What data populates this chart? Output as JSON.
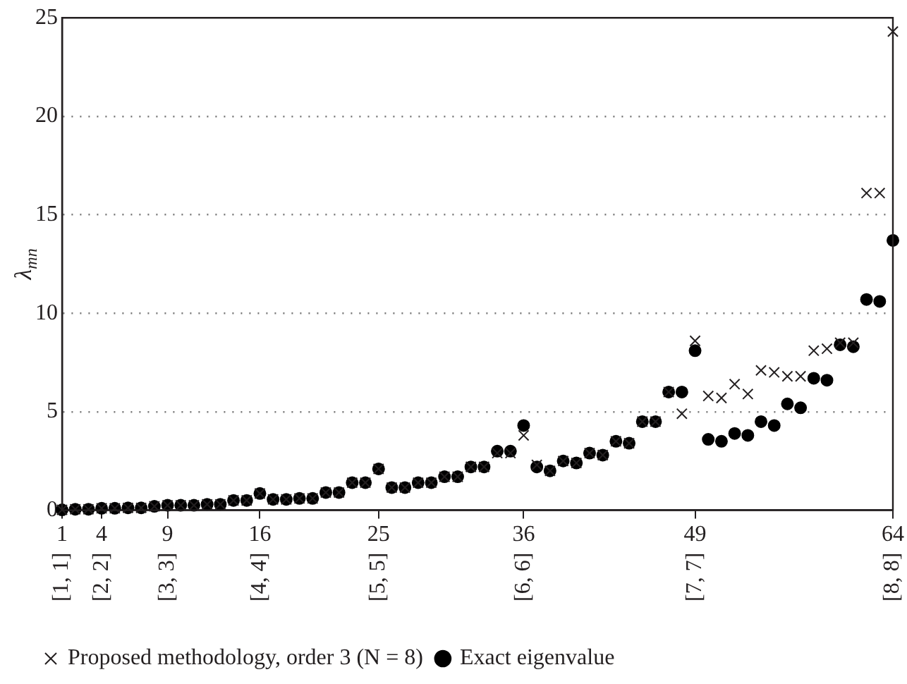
{
  "chart_data": {
    "type": "scatter",
    "ylabel": "λ$_{mn}$",
    "x": [
      1,
      2,
      3,
      4,
      5,
      6,
      7,
      8,
      9,
      10,
      11,
      12,
      13,
      14,
      15,
      16,
      17,
      18,
      19,
      20,
      21,
      22,
      23,
      24,
      25,
      26,
      27,
      28,
      29,
      30,
      31,
      32,
      33,
      34,
      35,
      36,
      37,
      38,
      39,
      40,
      41,
      42,
      43,
      44,
      45,
      46,
      47,
      48,
      49,
      50,
      51,
      52,
      53,
      54,
      55,
      56,
      57,
      58,
      59,
      60,
      61,
      62,
      63,
      64
    ],
    "series": [
      {
        "name": "Proposed methodology, order 3 (N = 8)",
        "color": "#231f20",
        "marker": "cross",
        "values": [
          0.02,
          0.05,
          0.05,
          0.1,
          0.1,
          0.12,
          0.12,
          0.2,
          0.25,
          0.25,
          0.25,
          0.3,
          0.3,
          0.5,
          0.5,
          0.85,
          0.55,
          0.55,
          0.6,
          0.6,
          0.9,
          0.9,
          1.4,
          1.4,
          2.1,
          1.15,
          1.15,
          1.4,
          1.4,
          1.7,
          1.7,
          2.2,
          2.2,
          2.9,
          2.9,
          3.8,
          2.3,
          2.0,
          2.5,
          2.4,
          2.9,
          2.8,
          3.5,
          3.4,
          4.5,
          4.5,
          6.0,
          4.9,
          8.6,
          5.8,
          5.7,
          6.4,
          5.9,
          7.1,
          7.0,
          6.8,
          6.8,
          8.1,
          8.2,
          8.5,
          8.5,
          16.1,
          16.1,
          24.3
        ]
      },
      {
        "name": "Exact eigenvalue",
        "color": "#000000",
        "marker": "circle",
        "values": [
          0.02,
          0.05,
          0.05,
          0.1,
          0.1,
          0.12,
          0.12,
          0.2,
          0.25,
          0.25,
          0.25,
          0.3,
          0.3,
          0.5,
          0.5,
          0.85,
          0.55,
          0.55,
          0.6,
          0.6,
          0.9,
          0.9,
          1.4,
          1.4,
          2.1,
          1.15,
          1.15,
          1.4,
          1.4,
          1.7,
          1.7,
          2.2,
          2.2,
          3.0,
          3.0,
          4.3,
          2.2,
          2.0,
          2.5,
          2.4,
          2.9,
          2.8,
          3.5,
          3.4,
          4.5,
          4.5,
          6.0,
          6.0,
          8.1,
          3.6,
          3.5,
          3.9,
          3.8,
          4.5,
          4.3,
          5.4,
          5.2,
          6.7,
          6.6,
          8.4,
          8.3,
          10.7,
          10.6,
          13.7
        ]
      }
    ],
    "xlim": [
      1,
      64
    ],
    "xticks": [
      1,
      4,
      9,
      16,
      25,
      36,
      49,
      64
    ],
    "ylim": [
      0,
      25
    ],
    "yticks": [
      0,
      5,
      10,
      15,
      20,
      25
    ],
    "annotations": [
      "[1, 1]",
      "[2, 2]",
      "[3, 3]",
      "[4, 4]",
      "[5, 5]",
      "[6, 6]",
      "[7, 7]",
      "[8, 8]"
    ],
    "grid": "y",
    "legend": "bottom left"
  }
}
